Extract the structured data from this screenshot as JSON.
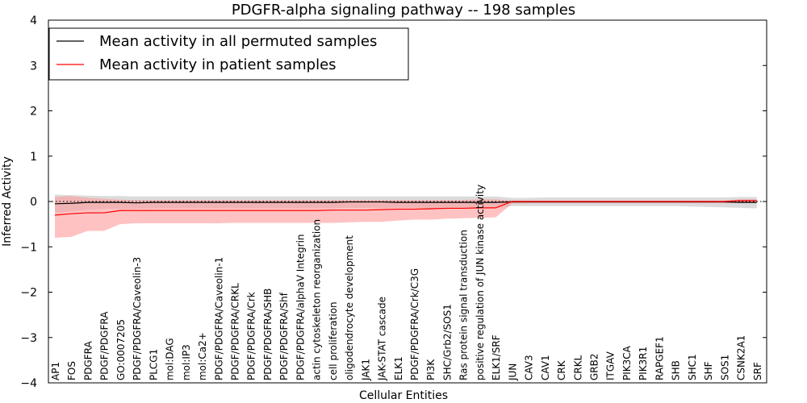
{
  "chart_data": {
    "type": "line",
    "title": "PDGFR-alpha signaling pathway -- 198 samples",
    "xlabel": "Cellular Entities",
    "ylabel": "Inferred Activity",
    "ylim": [
      -4,
      4
    ],
    "yticks": [
      4,
      3,
      2,
      1,
      0,
      -1,
      -2,
      -3,
      -4
    ],
    "ytick_labels": [
      "4",
      "3",
      "2",
      "1",
      "0",
      "−1",
      "−2",
      "−3",
      "−4"
    ],
    "legend_position": "top-left",
    "categories": [
      "AP1",
      "FOS",
      "PDGFRA",
      "PDGF/PDGFRA",
      "GO:0007205",
      "PDGF/PDGFRA/Caveolin-3",
      "PLCG1",
      "mol:DAG",
      "mol:IP3",
      "mol:Ca2+",
      "PDGF/PDGFRA/Caveolin-1",
      "PDGF/PDGFRA/CRKL",
      "PDGF/PDGFRA/Crk",
      "PDGF/PDGFRA/SHB",
      "PDGF/PDGFRA/Shf",
      "PDGF/PDGFRA/alphaV Integrin",
      "actin cytoskeleton reorganization",
      "cell proliferation",
      "oligodendrocyte development",
      "JAK1",
      "JAK-STAT cascade",
      "ELK1",
      "PDGF/PDGFRA/Crk/C3G",
      "PI3K",
      "SHC/Grb2/SOS1",
      "Ras protein signal transduction",
      "positive regulation of JUN kinase activity",
      "ELK1/SRF",
      "JUN",
      "CAV3",
      "CAV1",
      "CRK",
      "CRKL",
      "GRB2",
      "ITGAV",
      "PIK3CA",
      "PIK3R1",
      "RAPGEF1",
      "SHB",
      "SHC1",
      "SHF",
      "SOS1",
      "CSNK2A1",
      "SRF"
    ],
    "series": [
      {
        "name": "Mean activity in all permuted samples",
        "color": "#000000",
        "band_color": "#b0b0b0",
        "values": [
          -0.05,
          -0.04,
          -0.02,
          -0.02,
          -0.02,
          -0.03,
          -0.02,
          -0.02,
          -0.02,
          -0.02,
          -0.02,
          -0.02,
          -0.02,
          -0.02,
          -0.02,
          -0.02,
          -0.02,
          -0.02,
          -0.01,
          -0.01,
          -0.01,
          -0.02,
          -0.02,
          -0.02,
          -0.02,
          -0.02,
          -0.02,
          -0.02,
          -0.01,
          -0.01,
          -0.01,
          -0.01,
          -0.01,
          -0.01,
          -0.01,
          -0.01,
          -0.01,
          -0.01,
          -0.01,
          -0.01,
          -0.01,
          -0.01,
          -0.02,
          -0.02
        ],
        "upper": [
          0.15,
          0.14,
          0.13,
          0.12,
          0.12,
          0.11,
          0.11,
          0.11,
          0.11,
          0.11,
          0.11,
          0.11,
          0.11,
          0.11,
          0.11,
          0.11,
          0.11,
          0.11,
          0.11,
          0.11,
          0.11,
          0.11,
          0.11,
          0.11,
          0.11,
          0.11,
          0.11,
          0.11,
          0.08,
          0.08,
          0.09,
          0.09,
          0.09,
          0.09,
          0.09,
          0.09,
          0.09,
          0.09,
          0.09,
          0.09,
          0.09,
          0.09,
          0.1,
          0.1
        ],
        "lower": [
          -0.25,
          -0.22,
          -0.18,
          -0.16,
          -0.16,
          -0.16,
          -0.15,
          -0.15,
          -0.15,
          -0.15,
          -0.15,
          -0.15,
          -0.15,
          -0.15,
          -0.15,
          -0.15,
          -0.15,
          -0.15,
          -0.14,
          -0.14,
          -0.14,
          -0.15,
          -0.15,
          -0.15,
          -0.15,
          -0.15,
          -0.15,
          -0.15,
          -0.1,
          -0.1,
          -0.1,
          -0.1,
          -0.1,
          -0.1,
          -0.1,
          -0.1,
          -0.1,
          -0.1,
          -0.1,
          -0.11,
          -0.12,
          -0.13,
          -0.14,
          -0.15
        ]
      },
      {
        "name": "Mean activity in patient samples",
        "color": "#ff0000",
        "band_color": "#ff9999",
        "values": [
          -0.3,
          -0.27,
          -0.25,
          -0.25,
          -0.2,
          -0.2,
          -0.2,
          -0.2,
          -0.2,
          -0.2,
          -0.2,
          -0.2,
          -0.2,
          -0.2,
          -0.2,
          -0.2,
          -0.2,
          -0.19,
          -0.19,
          -0.19,
          -0.18,
          -0.17,
          -0.17,
          -0.16,
          -0.15,
          -0.15,
          -0.14,
          -0.14,
          0.0,
          0.0,
          0.0,
          0.0,
          0.0,
          0.0,
          0.0,
          0.0,
          0.0,
          0.0,
          0.0,
          0.0,
          0.0,
          0.0,
          0.02,
          0.02
        ],
        "upper": [
          0.1,
          0.12,
          0.08,
          0.06,
          0.04,
          0.03,
          0.03,
          0.03,
          0.03,
          0.03,
          0.03,
          0.03,
          0.03,
          0.03,
          0.03,
          0.03,
          0.03,
          0.03,
          0.03,
          0.03,
          0.03,
          0.03,
          0.03,
          0.03,
          0.03,
          0.03,
          0.05,
          0.05,
          0.02,
          0.02,
          0.02,
          0.02,
          0.02,
          0.02,
          0.02,
          0.02,
          0.02,
          0.02,
          0.02,
          0.02,
          0.02,
          0.02,
          0.05,
          0.05
        ],
        "lower": [
          -0.8,
          -0.78,
          -0.65,
          -0.65,
          -0.5,
          -0.48,
          -0.48,
          -0.48,
          -0.48,
          -0.48,
          -0.48,
          -0.47,
          -0.47,
          -0.47,
          -0.47,
          -0.47,
          -0.47,
          -0.47,
          -0.46,
          -0.45,
          -0.45,
          -0.42,
          -0.4,
          -0.4,
          -0.38,
          -0.37,
          -0.36,
          -0.35,
          -0.05,
          -0.04,
          -0.04,
          -0.04,
          -0.04,
          -0.04,
          -0.04,
          -0.04,
          -0.04,
          -0.04,
          -0.04,
          -0.04,
          -0.04,
          -0.04,
          -0.03,
          -0.03
        ]
      }
    ],
    "reference_line": {
      "y": 0,
      "style": "dotted"
    }
  }
}
